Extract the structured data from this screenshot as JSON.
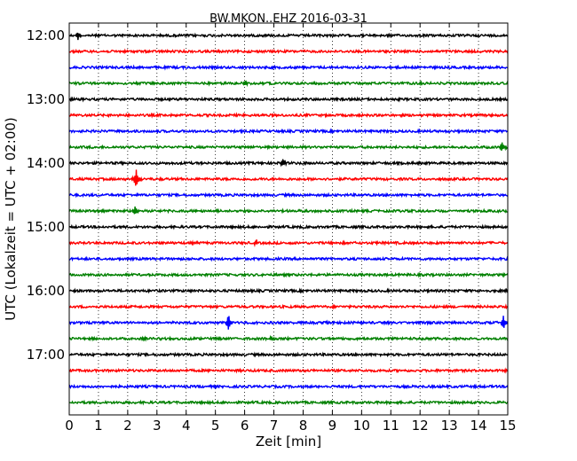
{
  "chart_data": {
    "type": "line",
    "title": "BW.MKON..EHZ 2016-03-31",
    "xlabel": "Zeit  [min]",
    "ylabel": "UTC (Lokalzeit = UTC + 02:00)",
    "xlim": [
      0,
      15
    ],
    "x_ticks": [
      0,
      1,
      2,
      3,
      4,
      5,
      6,
      7,
      8,
      9,
      10,
      11,
      12,
      13,
      14,
      15
    ],
    "y_tick_labels": [
      "12:00",
      "13:00",
      "14:00",
      "15:00",
      "16:00",
      "17:00"
    ],
    "grid": "vertical dotted",
    "row_interval_minutes": 15,
    "start_time": "12:00",
    "color_cycle": [
      "#000000",
      "#ff0000",
      "#0000ff",
      "#008000"
    ],
    "series": [
      {
        "start": "12:00",
        "events": [
          {
            "minute": 0.3,
            "amplitude": 0.35
          }
        ]
      },
      {
        "start": "12:15",
        "events": []
      },
      {
        "start": "12:30",
        "events": []
      },
      {
        "start": "12:45",
        "events": [
          {
            "minute": 6.0,
            "amplitude": 0.2
          }
        ]
      },
      {
        "start": "13:00",
        "events": []
      },
      {
        "start": "13:15",
        "events": []
      },
      {
        "start": "13:30",
        "events": []
      },
      {
        "start": "13:45",
        "events": [
          {
            "minute": 14.8,
            "amplitude": 0.3
          }
        ]
      },
      {
        "start": "14:00",
        "events": [
          {
            "minute": 7.3,
            "amplitude": 0.25
          }
        ]
      },
      {
        "start": "14:15",
        "events": [
          {
            "minute": 2.3,
            "amplitude": 0.7
          }
        ]
      },
      {
        "start": "14:30",
        "events": []
      },
      {
        "start": "14:45",
        "events": [
          {
            "minute": 2.25,
            "amplitude": 0.25
          }
        ]
      },
      {
        "start": "15:00",
        "events": []
      },
      {
        "start": "15:15",
        "events": [
          {
            "minute": 6.4,
            "amplitude": 0.2
          }
        ]
      },
      {
        "start": "15:30",
        "events": []
      },
      {
        "start": "15:45",
        "events": []
      },
      {
        "start": "16:00",
        "events": []
      },
      {
        "start": "16:15",
        "events": []
      },
      {
        "start": "16:30",
        "events": [
          {
            "minute": 5.45,
            "amplitude": 0.6
          },
          {
            "minute": 14.85,
            "amplitude": 0.45
          }
        ]
      },
      {
        "start": "16:45",
        "events": [
          {
            "minute": 6.9,
            "amplitude": 0.15
          }
        ]
      },
      {
        "start": "17:00",
        "events": []
      },
      {
        "start": "17:15",
        "events": []
      },
      {
        "start": "17:30",
        "events": []
      },
      {
        "start": "17:45",
        "events": []
      }
    ]
  }
}
